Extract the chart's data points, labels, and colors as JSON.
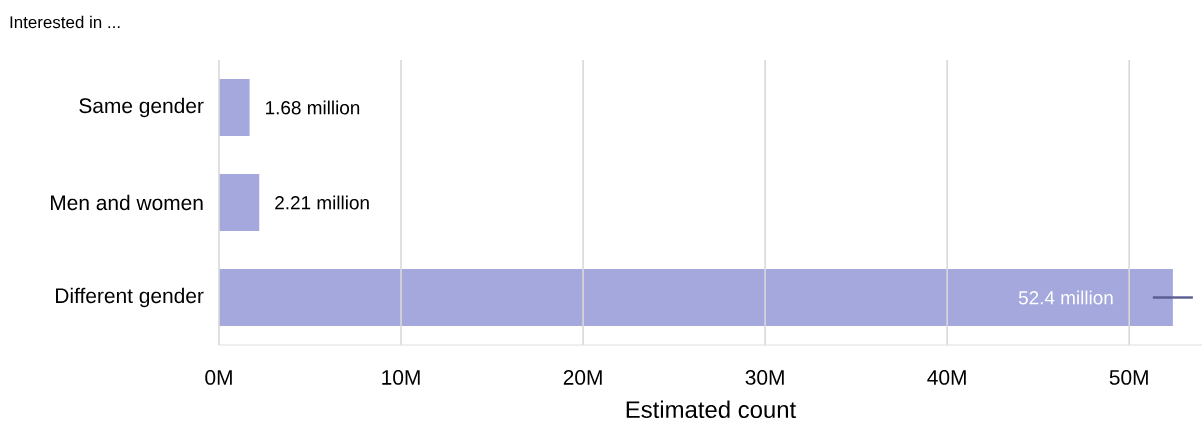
{
  "chart_data": {
    "type": "bar",
    "orientation": "horizontal",
    "annotations": [
      "Interested in ..."
    ],
    "xlabel": "Estimated count",
    "categories": [
      "Same gender",
      "Men and women",
      "Different gender"
    ],
    "values": [
      1.68,
      2.21,
      52.4
    ],
    "errors": [
      null,
      null,
      [
        51.3,
        53.5
      ]
    ],
    "value_labels": [
      "1.68 million",
      "2.21 million",
      "52.4 million"
    ],
    "color": "#a5a8dd",
    "xlim": [
      0,
      54
    ],
    "xticks": [
      {
        "value": 0,
        "label": "0M"
      },
      {
        "value": 10,
        "label": "10M"
      },
      {
        "value": 20,
        "label": "20M"
      },
      {
        "value": 30,
        "label": "30M"
      },
      {
        "value": 40,
        "label": "40M"
      },
      {
        "value": 50,
        "label": "50M"
      }
    ],
    "grid": "x"
  }
}
